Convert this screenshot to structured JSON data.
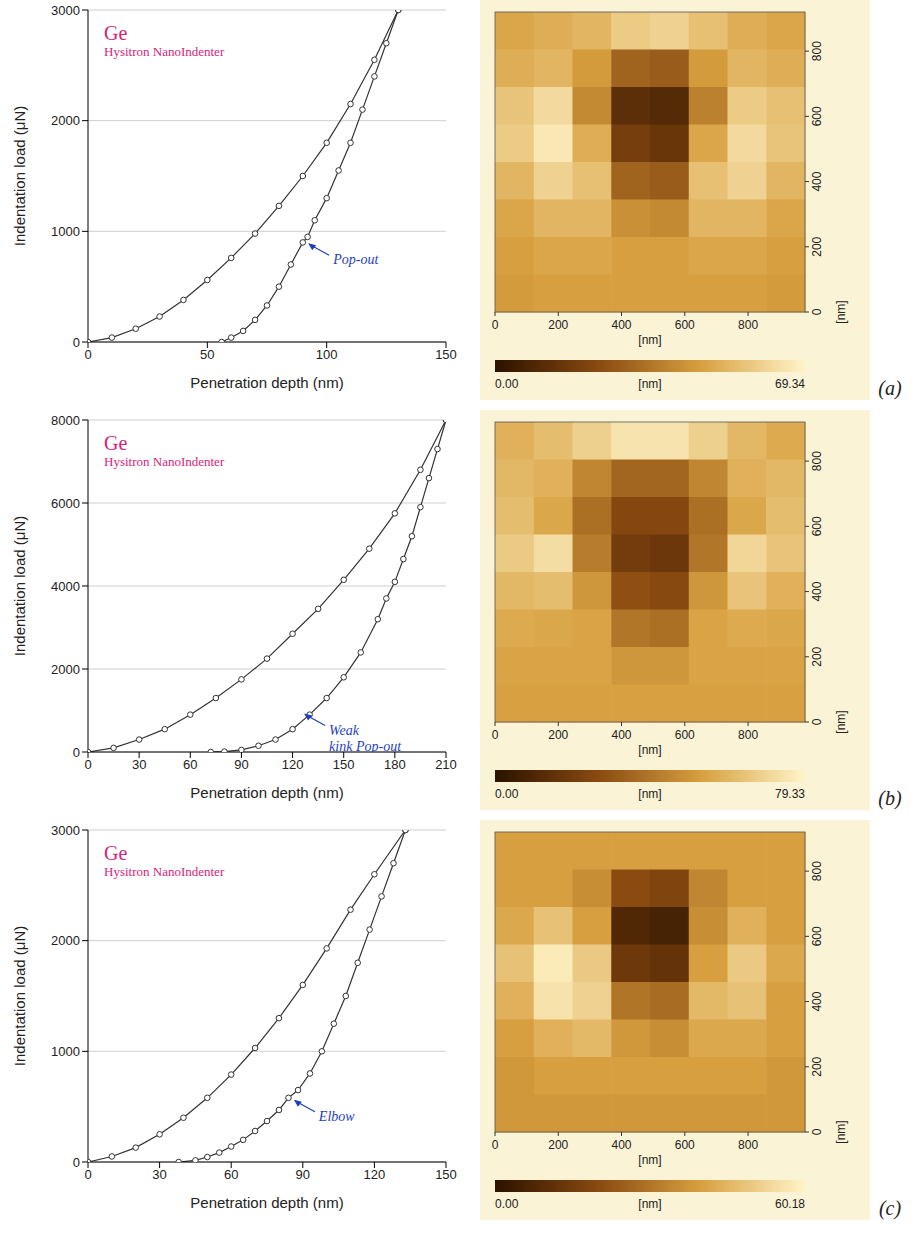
{
  "chart_data": [
    {
      "type": "line",
      "title": "Ge",
      "subtitle": "Hysitron NanoIndenter",
      "xlabel": "Penetration depth (nm)",
      "ylabel": "Indentation load (μN)",
      "xlim": [
        0,
        150
      ],
      "xticks": [
        0,
        50,
        100,
        150
      ],
      "ylim": [
        0,
        3000
      ],
      "yticks": [
        0,
        1000,
        2000,
        3000
      ],
      "grid": true,
      "marker": "circle",
      "line_style": "solid",
      "series": [
        {
          "color": "#333333",
          "x": [
            0,
            10,
            20,
            30,
            40,
            50,
            60,
            70,
            80,
            90,
            100,
            110,
            120,
            130
          ],
          "values": [
            0,
            40,
            120,
            230,
            380,
            560,
            760,
            980,
            1230,
            1500,
            1800,
            2150,
            2550,
            3000
          ]
        },
        {
          "color": "#333333",
          "x": [
            130,
            125,
            120,
            115,
            110,
            105,
            100,
            95,
            92,
            90,
            85,
            80,
            75,
            70,
            65,
            60,
            56
          ],
          "values": [
            3000,
            2700,
            2400,
            2100,
            1800,
            1550,
            1300,
            1100,
            950,
            900,
            700,
            500,
            330,
            200,
            100,
            40,
            0
          ]
        }
      ],
      "annotations": [
        {
          "text": "Pop-out",
          "x": 91,
          "y": 920
        }
      ]
    },
    {
      "type": "heatmap",
      "panel": "(a)",
      "xlabel": "[nm]",
      "ylabel": "[nm]",
      "xlim": [
        0,
        980
      ],
      "xticks": [
        0,
        200,
        400,
        600,
        800
      ],
      "ylim": [
        0,
        920
      ],
      "yticks": [
        0,
        200,
        400,
        600,
        800
      ],
      "cells": [
        [
          48,
          50,
          52,
          58,
          60,
          55,
          50,
          48
        ],
        [
          50,
          52,
          45,
          30,
          28,
          45,
          52,
          50
        ],
        [
          56,
          62,
          40,
          12,
          10,
          38,
          58,
          55
        ],
        [
          58,
          66,
          50,
          18,
          15,
          48,
          62,
          56
        ],
        [
          52,
          60,
          55,
          30,
          28,
          55,
          60,
          52
        ],
        [
          48,
          52,
          52,
          42,
          40,
          52,
          52,
          48
        ],
        [
          46,
          48,
          48,
          46,
          46,
          48,
          48,
          46
        ],
        [
          45,
          46,
          46,
          46,
          46,
          46,
          46,
          45
        ]
      ],
      "colorbar": {
        "range": [
          0,
          69.34
        ],
        "ticks": [
          {
            "value": 0,
            "label": "0.00"
          },
          {
            "value": 69.34,
            "label": "69.34"
          }
        ],
        "label": "[nm]"
      }
    },
    {
      "type": "line",
      "title": "Ge",
      "subtitle": "Hysitron NanoIndenter",
      "xlabel": "Penetration depth (nm)",
      "ylabel": "Indentation load (μN)",
      "xlim": [
        0,
        210
      ],
      "xticks": [
        0,
        30,
        60,
        90,
        120,
        150,
        180,
        210
      ],
      "ylim": [
        0,
        8000
      ],
      "yticks": [
        0,
        2000,
        4000,
        6000,
        8000
      ],
      "grid": true,
      "marker": "circle",
      "line_style": "solid",
      "series": [
        {
          "color": "#333333",
          "x": [
            0,
            15,
            30,
            45,
            60,
            75,
            90,
            105,
            120,
            135,
            150,
            165,
            180,
            195,
            210
          ],
          "values": [
            0,
            100,
            300,
            550,
            900,
            1300,
            1750,
            2250,
            2850,
            3450,
            4150,
            4900,
            5750,
            6800,
            8000
          ]
        },
        {
          "color": "#333333",
          "x": [
            210,
            205,
            200,
            195,
            190,
            185,
            180,
            175,
            170,
            160,
            150,
            140,
            130,
            120,
            110,
            100,
            90,
            80,
            72
          ],
          "values": [
            8000,
            7300,
            6600,
            5900,
            5200,
            4650,
            4100,
            3700,
            3200,
            2400,
            1800,
            1300,
            900,
            550,
            300,
            150,
            50,
            10,
            0
          ]
        }
      ],
      "annotations": [
        {
          "text": "Weak kink Pop-out",
          "x": 125,
          "y": 1000
        }
      ]
    },
    {
      "type": "heatmap",
      "panel": "(b)",
      "xlabel": "[nm]",
      "ylabel": "[nm]",
      "xlim": [
        0,
        980
      ],
      "xticks": [
        0,
        200,
        400,
        600,
        800
      ],
      "ylim": [
        0,
        920
      ],
      "yticks": [
        0,
        200,
        400,
        600,
        800
      ],
      "cells": [
        [
          58,
          62,
          68,
          74,
          74,
          68,
          60,
          56
        ],
        [
          60,
          58,
          45,
          35,
          35,
          45,
          58,
          60
        ],
        [
          62,
          55,
          38,
          25,
          25,
          38,
          55,
          62
        ],
        [
          66,
          72,
          42,
          20,
          18,
          40,
          70,
          64
        ],
        [
          60,
          62,
          50,
          28,
          26,
          50,
          64,
          58
        ],
        [
          56,
          55,
          54,
          40,
          38,
          54,
          56,
          55
        ],
        [
          54,
          54,
          54,
          50,
          50,
          54,
          54,
          54
        ],
        [
          53,
          53,
          53,
          53,
          53,
          53,
          53,
          53
        ]
      ],
      "colorbar": {
        "range": [
          0,
          79.33
        ],
        "ticks": [
          {
            "value": 0,
            "label": "0.00"
          },
          {
            "value": 79.33,
            "label": "79.33"
          }
        ],
        "label": "[nm]"
      }
    },
    {
      "type": "line",
      "title": "Ge",
      "subtitle": "Hysitron NanoIndenter",
      "xlabel": "Penetration depth (nm)",
      "ylabel": "Indentation load (μN)",
      "xlim": [
        0,
        150
      ],
      "xticks": [
        0,
        30,
        60,
        90,
        120,
        150
      ],
      "ylim": [
        0,
        3000
      ],
      "yticks": [
        0,
        1000,
        2000,
        3000
      ],
      "grid": true,
      "marker": "circle",
      "line_style": "solid",
      "series": [
        {
          "color": "#333333",
          "x": [
            0,
            10,
            20,
            30,
            40,
            50,
            60,
            70,
            80,
            90,
            100,
            110,
            120,
            133
          ],
          "values": [
            0,
            50,
            130,
            250,
            400,
            580,
            790,
            1030,
            1300,
            1600,
            1930,
            2280,
            2600,
            3000
          ]
        },
        {
          "color": "#333333",
          "x": [
            133,
            128,
            123,
            118,
            113,
            108,
            103,
            98,
            93,
            88,
            84,
            80,
            75,
            70,
            65,
            60,
            55,
            50,
            45,
            38
          ],
          "values": [
            3000,
            2700,
            2400,
            2100,
            1800,
            1500,
            1250,
            1000,
            800,
            650,
            580,
            470,
            370,
            280,
            200,
            140,
            85,
            45,
            15,
            0
          ]
        }
      ],
      "annotations": [
        {
          "text": "Elbow",
          "x": 85,
          "y": 590
        }
      ]
    },
    {
      "type": "heatmap",
      "panel": "(c)",
      "xlabel": "[nm]",
      "ylabel": "[nm]",
      "xlim": [
        0,
        980
      ],
      "xticks": [
        0,
        200,
        400,
        600,
        800
      ],
      "ylim": [
        0,
        920
      ],
      "yticks": [
        0,
        200,
        400,
        600,
        800
      ],
      "cells": [
        [
          40,
          40,
          40,
          40,
          40,
          40,
          40,
          40
        ],
        [
          40,
          40,
          36,
          20,
          18,
          34,
          40,
          40
        ],
        [
          42,
          48,
          40,
          8,
          6,
          36,
          44,
          40
        ],
        [
          48,
          58,
          50,
          14,
          12,
          40,
          50,
          42
        ],
        [
          44,
          56,
          52,
          30,
          28,
          46,
          48,
          40
        ],
        [
          40,
          44,
          46,
          38,
          36,
          42,
          42,
          40
        ],
        [
          38,
          40,
          40,
          40,
          40,
          40,
          40,
          38
        ],
        [
          38,
          38,
          38,
          38,
          38,
          38,
          38,
          38
        ]
      ],
      "colorbar": {
        "range": [
          0,
          60.18
        ],
        "ticks": [
          {
            "value": 0,
            "label": "0.00"
          },
          {
            "value": 60.18,
            "label": "60.18"
          }
        ],
        "label": "[nm]"
      }
    }
  ]
}
